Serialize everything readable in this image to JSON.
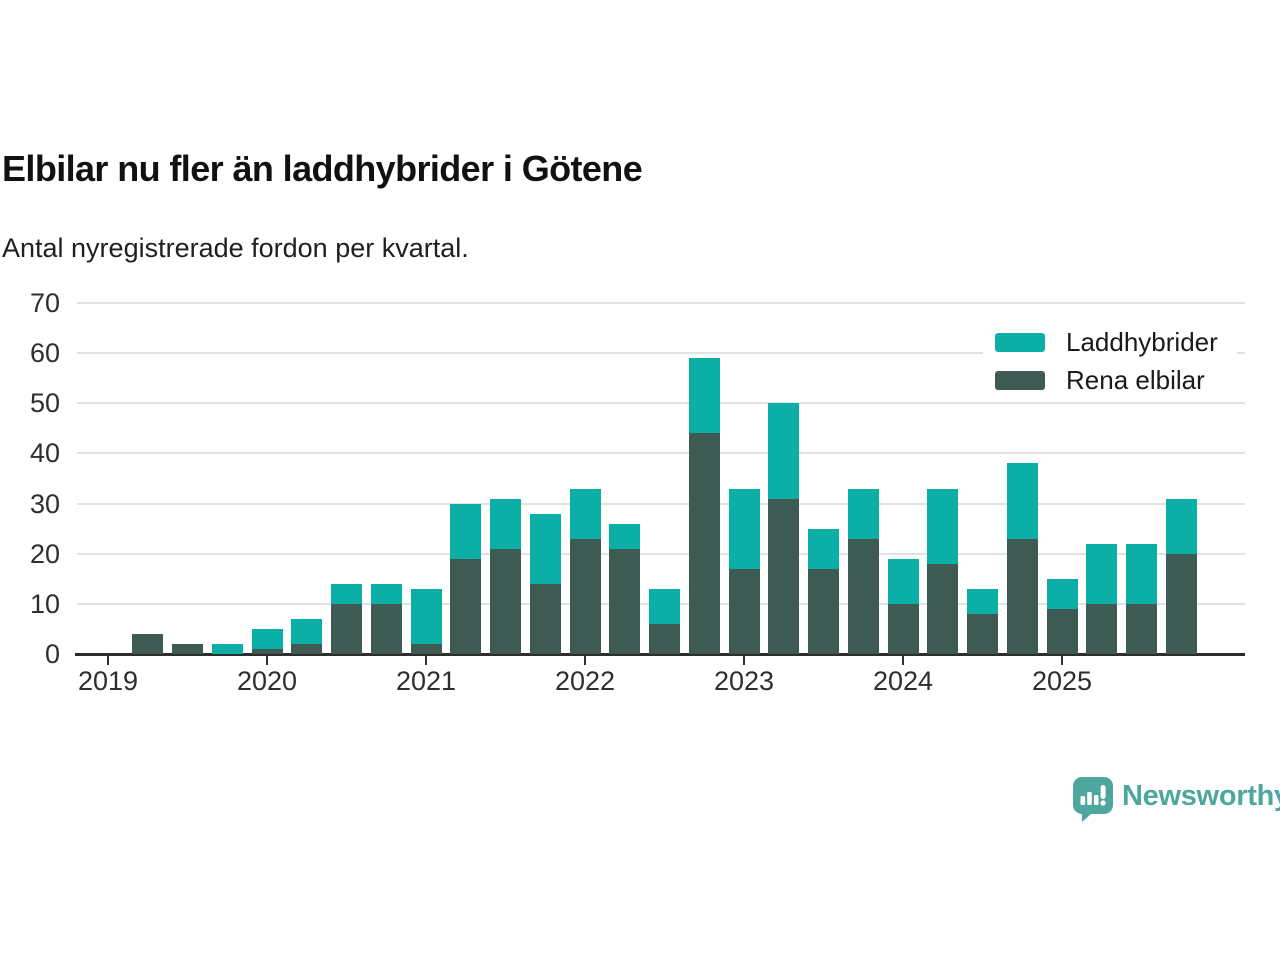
{
  "header": {
    "title": "Elbilar nu fler än laddhybrider i Götene",
    "subtitle": "Antal nyregistrerade fordon per kvartal."
  },
  "chart_data": {
    "type": "bar",
    "stacked": true,
    "title": "Elbilar nu fler än laddhybrider i Götene",
    "subtitle": "Antal nyregistrerade fordon per kvartal.",
    "xlabel": "",
    "ylabel": "",
    "ylim": [
      0,
      70
    ],
    "yticks": [
      0,
      10,
      20,
      30,
      40,
      50,
      60,
      70
    ],
    "grid": true,
    "legend_position": "top-right",
    "categories": [
      "2019 Q2",
      "2019 Q3",
      "2019 Q4",
      "2020 Q1",
      "2020 Q2",
      "2020 Q3",
      "2020 Q4",
      "2021 Q1",
      "2021 Q2",
      "2021 Q3",
      "2021 Q4",
      "2022 Q1",
      "2022 Q2",
      "2022 Q3",
      "2022 Q4",
      "2023 Q1",
      "2023 Q2",
      "2023 Q3",
      "2023 Q4",
      "2024 Q1",
      "2024 Q2",
      "2024 Q3",
      "2024 Q4",
      "2025 Q1",
      "2025 Q2",
      "2025 Q3",
      "2025 Q4"
    ],
    "series": [
      {
        "name": "Laddhybrider",
        "color": "#0bafa5",
        "values": [
          0,
          0,
          2,
          4,
          5,
          4,
          4,
          11,
          11,
          10,
          14,
          10,
          5,
          7,
          15,
          16,
          19,
          8,
          10,
          9,
          15,
          5,
          15,
          6,
          12,
          12,
          11
        ]
      },
      {
        "name": "Rena elbilar",
        "color": "#3d5a53",
        "values": [
          4,
          2,
          0,
          1,
          2,
          10,
          10,
          2,
          19,
          21,
          14,
          23,
          21,
          6,
          44,
          17,
          31,
          17,
          23,
          10,
          18,
          8,
          23,
          9,
          10,
          10,
          20
        ]
      }
    ],
    "totals": [
      4,
      2,
      2,
      5,
      7,
      14,
      14,
      13,
      30,
      31,
      28,
      33,
      26,
      13,
      59,
      33,
      50,
      25,
      33,
      19,
      33,
      13,
      38,
      15,
      22,
      22,
      31
    ],
    "x_ticks": [
      {
        "label": "2019",
        "quarter_index": -1
      },
      {
        "label": "2020",
        "quarter_index": 3
      },
      {
        "label": "2021",
        "quarter_index": 7
      },
      {
        "label": "2022",
        "quarter_index": 11
      },
      {
        "label": "2023",
        "quarter_index": 15
      },
      {
        "label": "2024",
        "quarter_index": 19
      },
      {
        "label": "2025",
        "quarter_index": 23
      }
    ]
  },
  "branding": {
    "logo_text": "Newsworthy",
    "logo_color": "#4ea69e"
  }
}
